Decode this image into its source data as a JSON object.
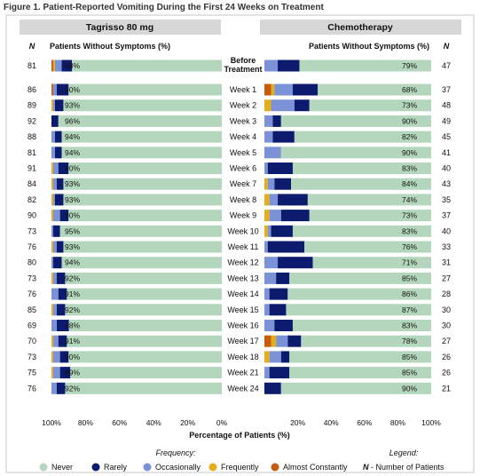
{
  "title": "Figure 1. Patient-Reported Vomiting During the First 24 Weeks on Treatment",
  "chart_data": {
    "type": "bar",
    "orientation": "horizontal",
    "stacked": true,
    "panels": [
      {
        "name": "Tagrisso 80 mg",
        "header": "Patients Without Symptoms (%)",
        "direction": "right-to-left"
      },
      {
        "name": "Chemotherapy",
        "header": "Patients Without Symptoms (%)",
        "direction": "left-to-right"
      }
    ],
    "n_header": "N",
    "categories": [
      "Before Treatment",
      "Week 1",
      "Week 2",
      "Week 3",
      "Week 4",
      "Week 5",
      "Week 6",
      "Week 7",
      "Week 8",
      "Week 9",
      "Week 10",
      "Week 11",
      "Week 12",
      "Week 13",
      "Week 14",
      "Week 15",
      "Week 16",
      "Week 17",
      "Week 18",
      "Week 21",
      "Week 24"
    ],
    "category_label_lines": [
      [
        "Before",
        "Treatment"
      ]
    ],
    "series_order": [
      "Never",
      "Rarely",
      "Occasionally",
      "Frequently",
      "Almost Constantly"
    ],
    "colors": {
      "Never": "#b4d6bd",
      "Rarely": "#0d1b6e",
      "Occasionally": "#7b93d6",
      "Frequently": "#e4ad1b",
      "Almost Constantly": "#c45e0e"
    },
    "tagrisso": {
      "n": [
        81,
        86,
        89,
        92,
        88,
        81,
        91,
        84,
        82,
        90,
        73,
        76,
        80,
        73,
        76,
        85,
        69,
        70,
        73,
        75,
        76
      ],
      "never": [
        88,
        90,
        93,
        96,
        94,
        94,
        90,
        93,
        93,
        90,
        95,
        93,
        94,
        92,
        91,
        92,
        88,
        91,
        90,
        89,
        92
      ],
      "rarely": [
        6,
        7,
        5,
        4,
        4,
        4,
        6,
        4,
        5,
        5,
        4,
        4,
        5,
        5,
        5,
        5,
        7,
        5,
        5,
        6,
        5
      ],
      "occasionally": [
        4,
        2,
        1,
        0,
        2,
        2,
        3,
        2,
        1,
        4,
        1,
        2,
        1,
        2,
        4,
        2,
        3,
        3,
        4,
        4,
        3
      ],
      "frequently": [
        1,
        0,
        1,
        0,
        0,
        0,
        1,
        1,
        1,
        1,
        0,
        1,
        0,
        1,
        0,
        1,
        0,
        1,
        1,
        1,
        0
      ],
      "almost_constantly": [
        1,
        1,
        0,
        0,
        0,
        0,
        0,
        0,
        0,
        0,
        0,
        0,
        0,
        0,
        0,
        0,
        0,
        0,
        0,
        0,
        0
      ]
    },
    "chemotherapy": {
      "n": [
        47,
        37,
        48,
        49,
        45,
        41,
        40,
        43,
        35,
        37,
        40,
        33,
        31,
        27,
        28,
        30,
        30,
        27,
        26,
        26,
        21
      ],
      "never": [
        79,
        68,
        73,
        90,
        82,
        90,
        83,
        84,
        74,
        73,
        83,
        76,
        71,
        85,
        86,
        87,
        83,
        78,
        85,
        85,
        90
      ],
      "rarely": [
        13,
        15,
        9,
        5,
        13,
        0,
        15,
        10,
        18,
        17,
        13,
        22,
        21,
        8,
        11,
        10,
        11,
        8,
        5,
        12,
        10
      ],
      "occasionally": [
        8,
        11,
        14,
        5,
        5,
        10,
        2,
        4,
        5,
        7,
        2,
        2,
        8,
        7,
        3,
        3,
        6,
        7,
        7,
        3,
        0
      ],
      "frequently": [
        0,
        2,
        4,
        0,
        0,
        0,
        0,
        2,
        3,
        3,
        2,
        0,
        0,
        0,
        0,
        0,
        0,
        3,
        3,
        0,
        0
      ],
      "almost_constantly": [
        0,
        4,
        0,
        0,
        0,
        0,
        0,
        0,
        0,
        0,
        0,
        0,
        0,
        0,
        0,
        0,
        0,
        4,
        0,
        0,
        0
      ]
    },
    "x_ticks": [
      "100%",
      "80%",
      "60%",
      "40%",
      "20%",
      "0%",
      "20%",
      "40%",
      "60%",
      "80%",
      "100%"
    ],
    "xlabel": "Percentage of Patients (%)"
  },
  "legend": {
    "frequency_label": "Frequency:",
    "legend_label": "Legend:",
    "items": [
      "Never",
      "Rarely",
      "Occasionally",
      "Frequently",
      "Almost Constantly"
    ],
    "n_key": "N",
    "n_desc": " - Number of Patients"
  }
}
